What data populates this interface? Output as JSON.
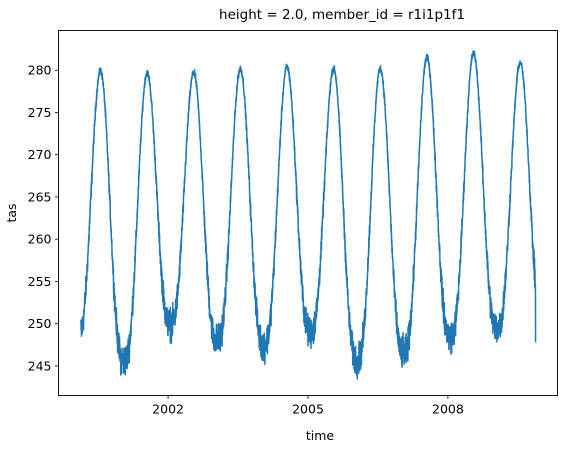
{
  "chart_data": {
    "type": "line",
    "title": "height = 2.0, member_id = r1i1p1f1",
    "xlabel": "time",
    "ylabel": "tas",
    "x_range": [
      1999.65,
      2010.35
    ],
    "ylim": [
      241.5,
      284.7
    ],
    "x_ticks": [
      {
        "value": 2002,
        "label": "2002"
      },
      {
        "value": 2005,
        "label": "2005"
      },
      {
        "value": 2008,
        "label": "2008"
      }
    ],
    "y_ticks": [
      {
        "value": 245,
        "label": "245"
      },
      {
        "value": 250,
        "label": "250"
      },
      {
        "value": 255,
        "label": "255"
      },
      {
        "value": 260,
        "label": "260"
      },
      {
        "value": 265,
        "label": "265"
      },
      {
        "value": 270,
        "label": "270"
      },
      {
        "value": 275,
        "label": "275"
      },
      {
        "value": 280,
        "label": "280"
      }
    ],
    "grid": false,
    "legend": "none",
    "line_color": "#1f77b4",
    "series": [
      {
        "name": "",
        "note_x_unit": "decimal year",
        "start": 2000.13,
        "end": 2009.88,
        "first_value": 250.5,
        "last_value": 247.8,
        "seasonal_cycle": [
          {
            "year": 2000,
            "winter_min": 245.5,
            "summer_max": 280.7,
            "summer_peak_x": 2000.55
          },
          {
            "year": 2001,
            "winter_min": 243.1,
            "summer_max": 280.5,
            "summer_peak_x": 2001.55
          },
          {
            "year": 2002,
            "winter_min": 247.5,
            "summer_max": 280.5,
            "summer_peak_x": 2002.55
          },
          {
            "year": 2003,
            "winter_min": 245.5,
            "summer_max": 281.0,
            "summer_peak_x": 2003.55
          },
          {
            "year": 2004,
            "winter_min": 245.0,
            "summer_max": 281.2,
            "summer_peak_x": 2004.55
          },
          {
            "year": 2005,
            "winter_min": 246.5,
            "summer_max": 281.0,
            "summer_peak_x": 2005.55
          },
          {
            "year": 2006,
            "winter_min": 243.2,
            "summer_max": 281.0,
            "summer_peak_x": 2006.55
          },
          {
            "year": 2007,
            "winter_min": 244.0,
            "summer_max": 282.3,
            "summer_peak_x": 2007.55
          },
          {
            "year": 2008,
            "winter_min": 246.0,
            "summer_max": 282.8,
            "summer_peak_x": 2008.55
          },
          {
            "year": 2009,
            "winter_min": 247.0,
            "summer_max": 281.7,
            "summer_peak_x": 2009.55
          }
        ]
      }
    ]
  }
}
